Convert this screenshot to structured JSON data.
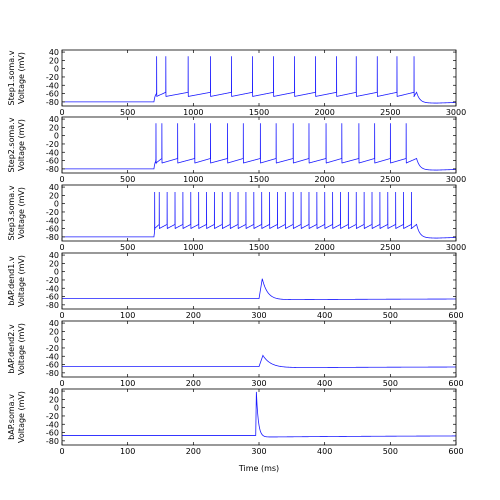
{
  "chart_data": {
    "type": "line",
    "line_color": "#1a1aff",
    "xlabel": "Time (ms)",
    "panels": [
      {
        "id": "step1",
        "ylabel_1": "Step1.soma.v",
        "ylabel_2": "Voltage (mV)",
        "xlim": [
          0,
          3000
        ],
        "ylim": [
          -90,
          45
        ],
        "xticks": [
          0,
          500,
          1000,
          1500,
          2000,
          2500,
          3000
        ],
        "yticks": [
          -80,
          -60,
          -40,
          -20,
          0,
          20,
          40
        ],
        "resting_mv": -80,
        "stim_on_ms": 700,
        "stim_off_ms": 2700,
        "plateau_mv": -57,
        "trough_mv": -67,
        "spike_peak_mv": 30,
        "post_stim_mv": -83,
        "spike_times_ms": [
          720,
          790,
          960,
          1130,
          1290,
          1450,
          1610,
          1770,
          1930,
          2090,
          2240,
          2400,
          2550,
          2680
        ]
      },
      {
        "id": "step2",
        "ylabel_1": "Step2.soma.v",
        "ylabel_2": "Voltage (mV)",
        "xlim": [
          0,
          3000
        ],
        "ylim": [
          -90,
          45
        ],
        "xticks": [
          0,
          500,
          1000,
          1500,
          2000,
          2500,
          3000
        ],
        "yticks": [
          -80,
          -60,
          -40,
          -20,
          0,
          20,
          40
        ],
        "resting_mv": -80,
        "stim_on_ms": 700,
        "stim_off_ms": 2700,
        "plateau_mv": -55,
        "trough_mv": -66,
        "spike_peak_mv": 30,
        "post_stim_mv": -83,
        "spike_times_ms": [
          715,
          760,
          880,
          1010,
          1130,
          1260,
          1380,
          1510,
          1630,
          1760,
          1880,
          2010,
          2130,
          2260,
          2380,
          2500,
          2620
        ]
      },
      {
        "id": "step3",
        "ylabel_1": "Step3.soma.v",
        "ylabel_2": "Voltage (mV)",
        "xlim": [
          0,
          3000
        ],
        "ylim": [
          -90,
          45
        ],
        "xticks": [
          0,
          500,
          1000,
          1500,
          2000,
          2500,
          3000
        ],
        "yticks": [
          -80,
          -60,
          -40,
          -20,
          0,
          20,
          40
        ],
        "resting_mv": -80,
        "stim_on_ms": 700,
        "stim_off_ms": 2700,
        "plateau_mv": -50,
        "trough_mv": -60,
        "spike_peak_mv": 28,
        "post_stim_mv": -83,
        "spike_times_ms": [
          705,
          740,
          800,
          860,
          920,
          980,
          1040,
          1100,
          1160,
          1220,
          1280,
          1340,
          1400,
          1460,
          1520,
          1580,
          1640,
          1700,
          1760,
          1820,
          1880,
          1940,
          2000,
          2060,
          2120,
          2180,
          2240,
          2300,
          2360,
          2420,
          2480,
          2540,
          2600,
          2660
        ]
      },
      {
        "id": "bap_dend1",
        "ylabel_1": "bAP.dend1.v",
        "ylabel_2": "Voltage (mV)",
        "xlim": [
          0,
          600
        ],
        "ylim": [
          -90,
          45
        ],
        "xticks": [
          0,
          100,
          200,
          300,
          400,
          500,
          600
        ],
        "yticks": [
          -80,
          -60,
          -40,
          -20,
          0,
          20,
          40
        ],
        "baseline_mv": -65,
        "event_ms": 300,
        "peak_mv": -17,
        "undershoot_mv": -68,
        "peak_delay_ms": 5,
        "decay_ms": 8
      },
      {
        "id": "bap_dend2",
        "ylabel_1": "bAP.dend2.v",
        "ylabel_2": "Voltage (mV)",
        "xlim": [
          0,
          600
        ],
        "ylim": [
          -90,
          45
        ],
        "xticks": [
          0,
          100,
          200,
          300,
          400,
          500,
          600
        ],
        "yticks": [
          -80,
          -60,
          -40,
          -20,
          0,
          20,
          40
        ],
        "baseline_mv": -65,
        "event_ms": 300,
        "peak_mv": -38,
        "undershoot_mv": -68,
        "peak_delay_ms": 6,
        "decay_ms": 12
      },
      {
        "id": "bap_soma",
        "ylabel_1": "bAP.soma.v",
        "ylabel_2": "Voltage (mV)",
        "xlim": [
          0,
          600
        ],
        "ylim": [
          -90,
          45
        ],
        "xticks": [
          0,
          100,
          200,
          300,
          400,
          500,
          600
        ],
        "yticks": [
          -80,
          -60,
          -40,
          -20,
          0,
          20,
          40
        ],
        "baseline_mv": -67,
        "event_ms": 295,
        "peak_mv": 38,
        "undershoot_mv": -71,
        "peak_delay_ms": 1,
        "decay_ms": 3
      }
    ]
  }
}
